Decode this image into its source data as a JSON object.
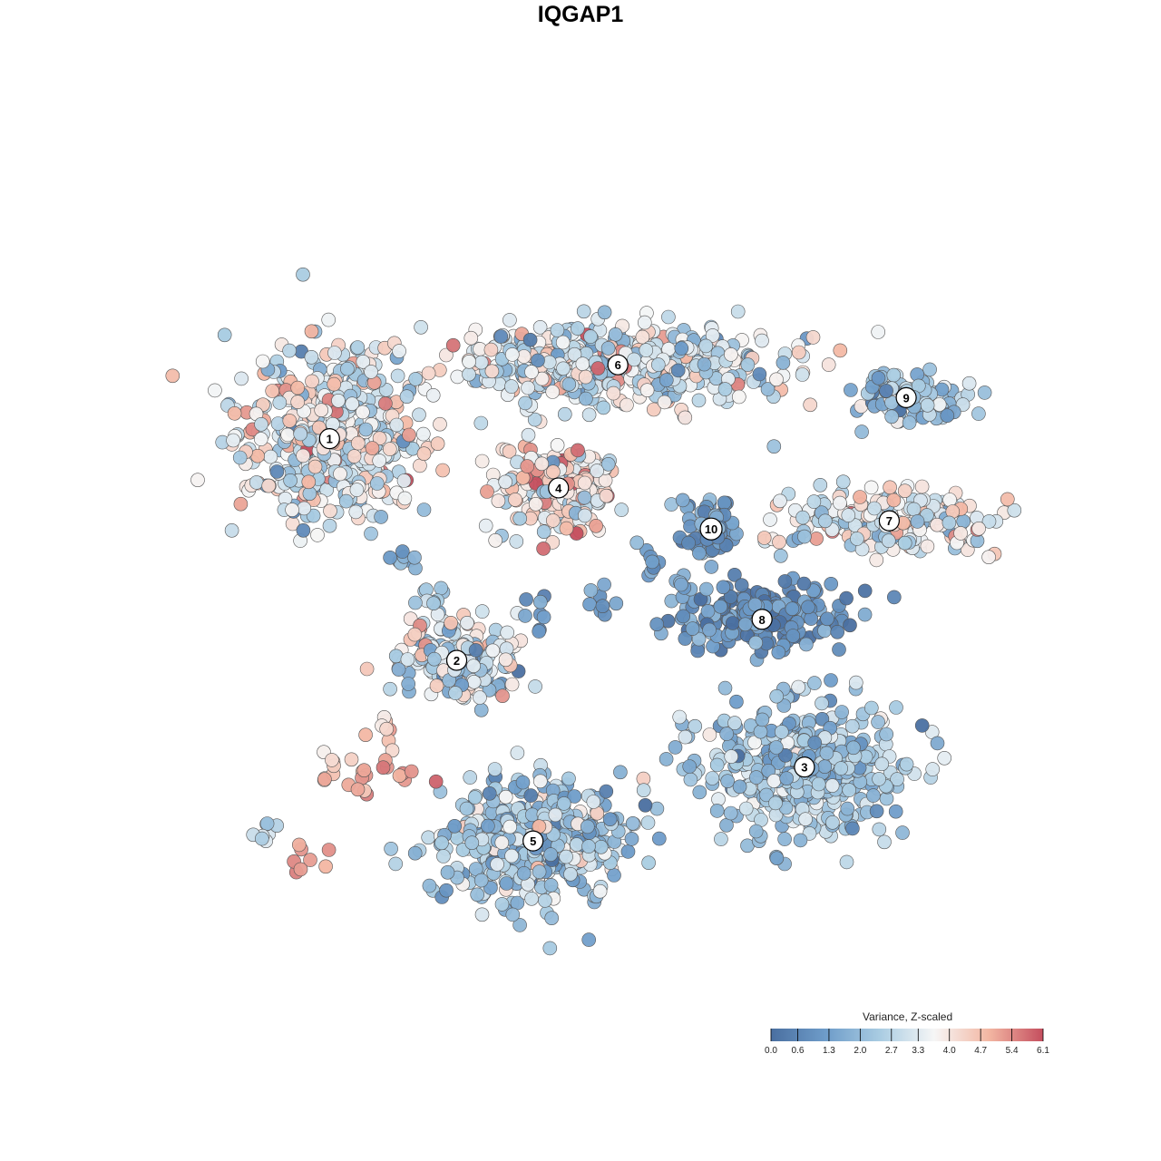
{
  "chart_data": {
    "type": "scatter",
    "title": "IQGAP1",
    "xlabel": "",
    "ylabel": "",
    "grid": false,
    "colorbar": {
      "title": "Variance, Z-scaled",
      "min": 0.0,
      "max": 6.1,
      "ticks": [
        "0.0",
        "0.6",
        "1.3",
        "2.0",
        "2.7",
        "3.3",
        "4.0",
        "4.7",
        "5.4",
        "6.1"
      ],
      "colors": [
        "#4a6fa0",
        "#6e9cc9",
        "#a9cce2",
        "#f6f6f6",
        "#f3b7a3",
        "#c44e5e"
      ],
      "placement": "bottom-right"
    },
    "clusters": [
      {
        "label": "1",
        "x": 0.18,
        "y": 0.67,
        "value": 3.3
      },
      {
        "label": "2",
        "x": 0.33,
        "y": 0.4,
        "value": 2.9
      },
      {
        "label": "3",
        "x": 0.74,
        "y": 0.27,
        "value": 2.1
      },
      {
        "label": "4",
        "x": 0.45,
        "y": 0.61,
        "value": 4.0
      },
      {
        "label": "5",
        "x": 0.42,
        "y": 0.18,
        "value": 2.3
      },
      {
        "label": "6",
        "x": 0.52,
        "y": 0.76,
        "value": 3.1
      },
      {
        "label": "7",
        "x": 0.84,
        "y": 0.57,
        "value": 3.4
      },
      {
        "label": "8",
        "x": 0.69,
        "y": 0.45,
        "value": 0.8
      },
      {
        "label": "9",
        "x": 0.86,
        "y": 0.72,
        "value": 2.2
      },
      {
        "label": "10",
        "x": 0.63,
        "y": 0.56,
        "value": 1.2
      }
    ]
  }
}
